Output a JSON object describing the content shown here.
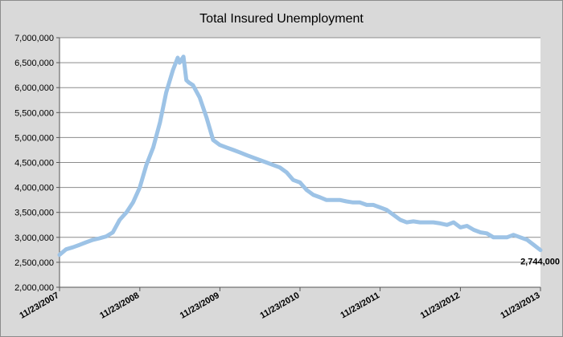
{
  "chart_data": {
    "type": "line",
    "title": "Total Insured Unemployment",
    "xlabel": "",
    "ylabel": "",
    "ylim": [
      2000000,
      7000000
    ],
    "yticks": [
      2000000,
      2500000,
      3000000,
      3500000,
      4000000,
      4500000,
      5000000,
      5500000,
      6000000,
      6500000,
      7000000
    ],
    "ytick_labels": [
      "2,000,000",
      "2,500,000",
      "3,000,000",
      "3,500,000",
      "4,000,000",
      "4,500,000",
      "5,000,000",
      "5,500,000",
      "6,000,000",
      "6,500,000",
      "7,000,000"
    ],
    "xlim": [
      "2007-11-23",
      "2013-11-23"
    ],
    "xticks": [
      "2007-11-23",
      "2008-11-23",
      "2009-11-23",
      "2010-11-23",
      "2011-11-23",
      "2012-11-23",
      "2013-11-23"
    ],
    "xtick_labels": [
      "11/23/2007",
      "11/23/2008",
      "11/23/2009",
      "11/23/2010",
      "11/23/2011",
      "11/23/2012",
      "11/23/2013"
    ],
    "grid": "horizontal",
    "legend": "none",
    "line_color": "#9dc3e6",
    "annotation": {
      "text": "2,744,000",
      "x": "2013-11-23",
      "y": 2744000
    },
    "series": [
      {
        "x": [
          "2007-11-23",
          "2007-12-23",
          "2008-01-23",
          "2008-02-23",
          "2008-03-23",
          "2008-04-23",
          "2008-05-23",
          "2008-06-23",
          "2008-07-23",
          "2008-08-23",
          "2008-09-23",
          "2008-10-23",
          "2008-11-23",
          "2008-12-23",
          "2009-01-23",
          "2009-02-23",
          "2009-03-23",
          "2009-04-23",
          "2009-05-15",
          "2009-05-23",
          "2009-06-10",
          "2009-06-23",
          "2009-07-05",
          "2009-07-23",
          "2009-08-23",
          "2009-09-23",
          "2009-10-23",
          "2009-11-23",
          "2009-12-23",
          "2010-01-23",
          "2010-02-23",
          "2010-03-23",
          "2010-04-23",
          "2010-05-23",
          "2010-06-23",
          "2010-07-23",
          "2010-08-23",
          "2010-09-23",
          "2010-10-23",
          "2010-11-23",
          "2010-12-23",
          "2011-01-23",
          "2011-02-23",
          "2011-03-23",
          "2011-04-23",
          "2011-05-23",
          "2011-06-23",
          "2011-07-23",
          "2011-08-23",
          "2011-09-23",
          "2011-10-23",
          "2011-11-23",
          "2011-12-23",
          "2012-01-23",
          "2012-02-23",
          "2012-03-23",
          "2012-04-23",
          "2012-05-23",
          "2012-06-23",
          "2012-07-23",
          "2012-08-23",
          "2012-09-23",
          "2012-10-23",
          "2012-11-23",
          "2012-12-23",
          "2013-01-23",
          "2013-02-23",
          "2013-03-23",
          "2013-04-23",
          "2013-05-23",
          "2013-06-23",
          "2013-07-23",
          "2013-08-23",
          "2013-09-23",
          "2013-10-23",
          "2013-11-23"
        ],
        "values": [
          2650000,
          2760000,
          2800000,
          2850000,
          2900000,
          2950000,
          2980000,
          3020000,
          3100000,
          3350000,
          3500000,
          3700000,
          4000000,
          4450000,
          4800000,
          5300000,
          5900000,
          6350000,
          6600000,
          6500000,
          6620000,
          6150000,
          6100000,
          6050000,
          5800000,
          5400000,
          4950000,
          4850000,
          4800000,
          4750000,
          4700000,
          4650000,
          4600000,
          4550000,
          4500000,
          4450000,
          4400000,
          4300000,
          4150000,
          4100000,
          3950000,
          3850000,
          3800000,
          3750000,
          3750000,
          3750000,
          3720000,
          3700000,
          3700000,
          3650000,
          3650000,
          3600000,
          3550000,
          3450000,
          3350000,
          3300000,
          3320000,
          3300000,
          3300000,
          3300000,
          3280000,
          3250000,
          3300000,
          3200000,
          3230000,
          3150000,
          3100000,
          3080000,
          3000000,
          3000000,
          3000000,
          3050000,
          3000000,
          2950000,
          2850000,
          2744000
        ]
      }
    ]
  }
}
